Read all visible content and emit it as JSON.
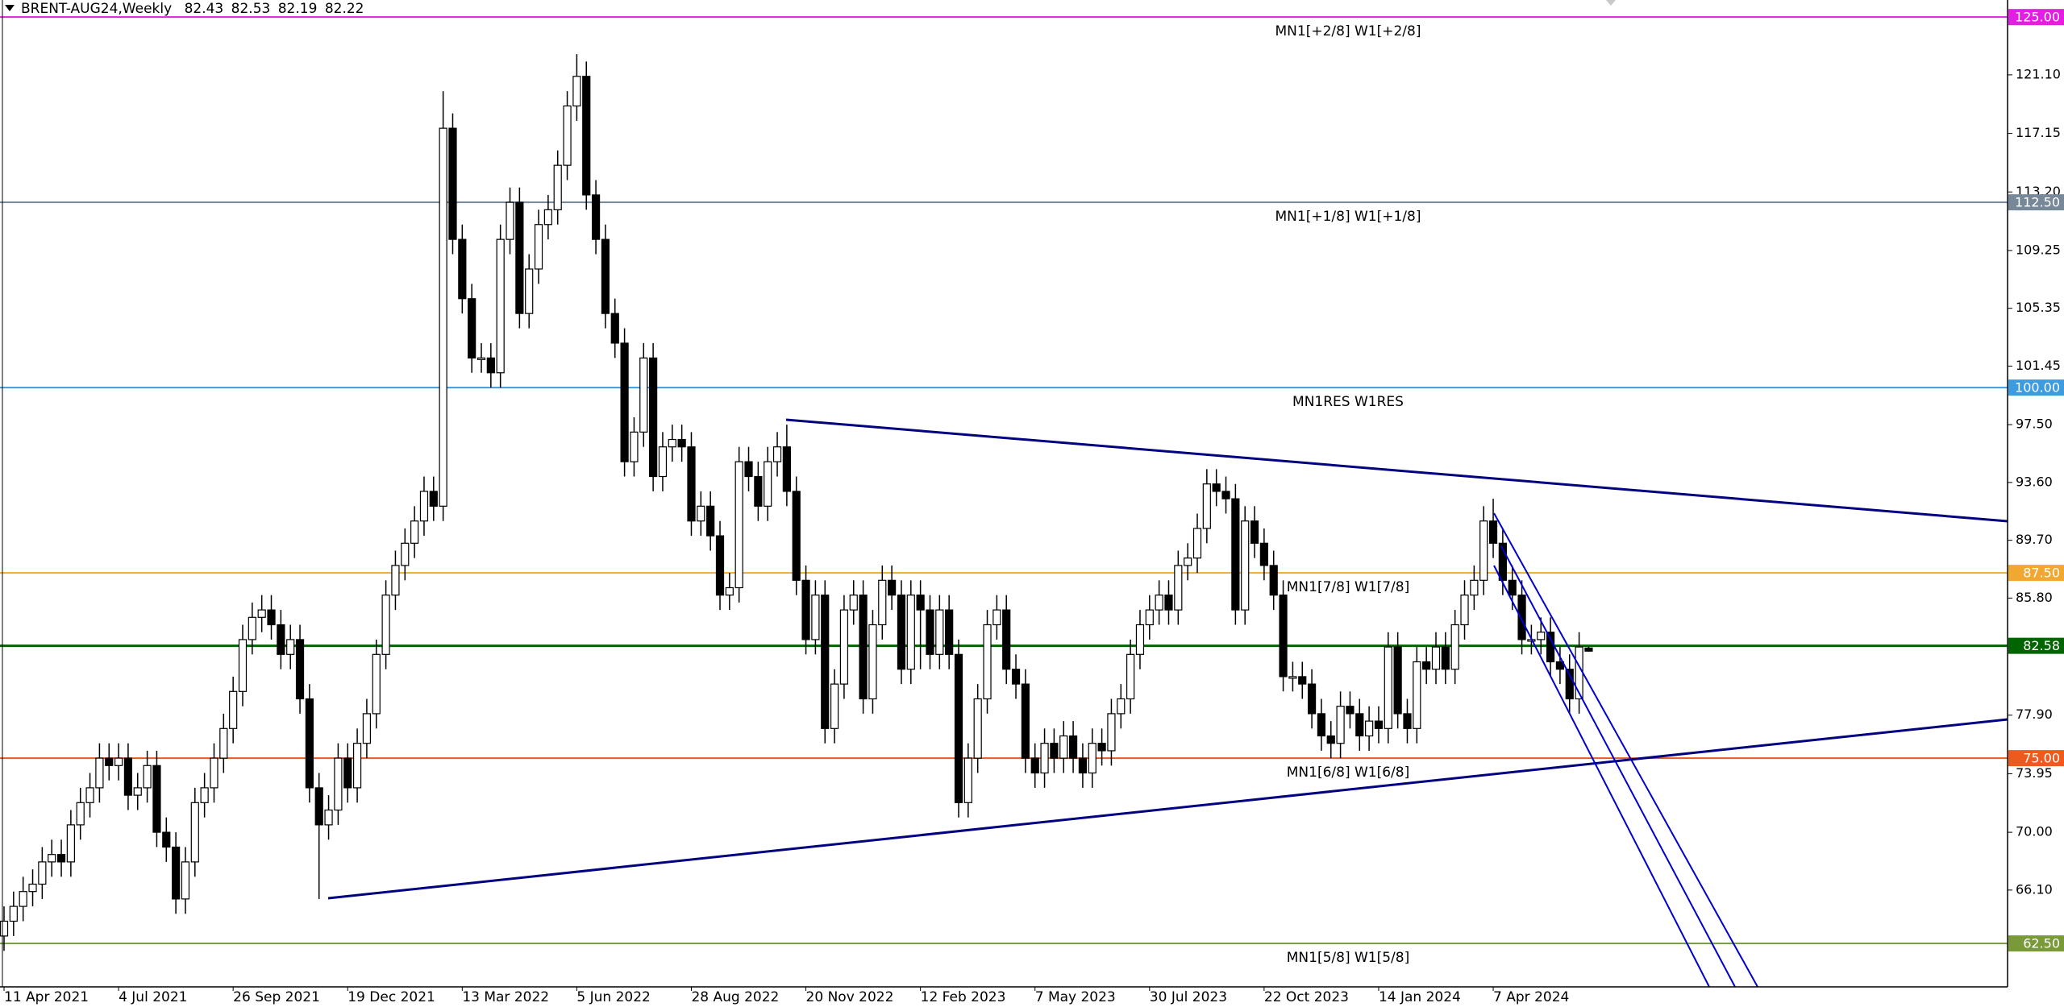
{
  "header": {
    "symbol": "BRENT-AUG24,Weekly",
    "ohlc": [
      82.43,
      82.53,
      82.19,
      82.22
    ]
  },
  "chart_data": {
    "type": "candlestick",
    "categories": [
      "11 Apr 2021",
      null,
      null,
      null,
      null,
      null,
      null,
      null,
      null,
      null,
      null,
      null,
      "4 Jul 2021",
      null,
      null,
      null,
      null,
      null,
      null,
      null,
      null,
      null,
      null,
      null,
      "26 Sep 2021",
      null,
      null,
      null,
      null,
      null,
      null,
      null,
      null,
      null,
      null,
      null,
      "19 Dec 2021",
      null,
      null,
      null,
      null,
      null,
      null,
      null,
      null,
      null,
      null,
      null,
      "13 Mar 2022",
      null,
      null,
      null,
      null,
      null,
      null,
      null,
      null,
      null,
      null,
      null,
      "5 Jun 2022",
      null,
      null,
      null,
      null,
      null,
      null,
      null,
      null,
      null,
      null,
      null,
      "28 Aug 2022",
      null,
      null,
      null,
      null,
      null,
      null,
      null,
      null,
      null,
      null,
      null,
      "20 Nov 2022",
      null,
      null,
      null,
      null,
      null,
      null,
      null,
      null,
      null,
      null,
      null,
      "12 Feb 2023",
      null,
      null,
      null,
      null,
      null,
      null,
      null,
      null,
      null,
      null,
      null,
      "7 May 2023",
      null,
      null,
      null,
      null,
      null,
      null,
      null,
      null,
      null,
      null,
      null,
      "30 Jul 2023",
      null,
      null,
      null,
      null,
      null,
      null,
      null,
      null,
      null,
      null,
      null,
      "22 Oct 2023",
      null,
      null,
      null,
      null,
      null,
      null,
      null,
      null,
      null,
      null,
      null,
      "14 Jan 2024",
      null,
      null,
      null,
      null,
      null,
      null,
      null,
      null,
      null,
      null,
      null,
      "7 Apr 2024",
      null,
      null,
      null,
      null,
      null,
      null,
      null,
      null,
      null,
      null
    ],
    "open": [
      63,
      64,
      65,
      66,
      66.5,
      68,
      68.5,
      68,
      70.5,
      72,
      73,
      75,
      74.5,
      75,
      72.5,
      73,
      74.5,
      70,
      69,
      65.5,
      68,
      72,
      73,
      75,
      77,
      79.5,
      83,
      84.5,
      85,
      84,
      82,
      83,
      79,
      73,
      70.5,
      71.5,
      75,
      73,
      76,
      78,
      82,
      86,
      88,
      89.5,
      91,
      93,
      92,
      117.5,
      110,
      106,
      102,
      102,
      101,
      110,
      112.5,
      105,
      108,
      111,
      112,
      115,
      119,
      121,
      113,
      110,
      105,
      103,
      95,
      97,
      102,
      94,
      96,
      96.5,
      96,
      91,
      92,
      90,
      86,
      86.5,
      95,
      94,
      92,
      95,
      96,
      93,
      87,
      83,
      86,
      77,
      80,
      85,
      86,
      79,
      84,
      87,
      86,
      81,
      86,
      85,
      82,
      85,
      82,
      72,
      75,
      79,
      84,
      85,
      81,
      80,
      75,
      74,
      76,
      75,
      76.5,
      75,
      74,
      76,
      75.5,
      78,
      79,
      82,
      84,
      85,
      86,
      85,
      88,
      88.5,
      90.5,
      93.5,
      93,
      92.5,
      85,
      91,
      89.5,
      88,
      86,
      80.5,
      80.5,
      80,
      78,
      76.5,
      76,
      78.5,
      78,
      76.5,
      77.5,
      77,
      82.5,
      78,
      77,
      81.5,
      81,
      82.5,
      81,
      84,
      86,
      87,
      91,
      89.5,
      87,
      86,
      83,
      83,
      83.5,
      81.5,
      81,
      79,
      82.43
    ],
    "high": [
      65,
      66,
      67,
      67.5,
      69,
      69.5,
      69.5,
      71.5,
      73,
      74,
      76,
      76,
      76,
      76,
      74,
      75.5,
      75.5,
      71,
      70,
      69,
      73,
      74,
      76,
      78,
      80.5,
      84,
      85.5,
      86,
      86,
      85,
      84,
      84,
      80,
      74,
      72.5,
      76,
      76,
      77,
      79,
      83,
      87,
      89,
      90.5,
      92,
      94,
      94,
      120,
      118.5,
      111,
      107,
      103,
      103,
      111,
      113.5,
      113.5,
      109,
      112,
      113,
      116,
      120,
      122.5,
      122,
      114,
      111,
      106,
      104,
      98,
      103,
      103,
      97,
      97.5,
      97.5,
      97,
      93,
      93,
      91,
      87.5,
      96,
      96,
      95,
      96,
      97,
      97.5,
      94,
      88,
      87,
      87,
      81,
      86,
      87,
      87,
      85,
      88,
      88,
      87,
      87,
      87,
      86,
      86,
      86,
      83,
      76,
      80,
      85,
      86,
      86,
      82,
      81,
      76,
      77,
      77,
      77.5,
      77.5,
      76,
      77,
      77,
      79,
      80,
      83,
      85,
      86,
      87,
      87,
      89,
      89.5,
      91.5,
      94.5,
      94.5,
      94,
      93.5,
      92,
      92,
      90.5,
      89,
      87,
      81.5,
      81.5,
      81,
      79,
      77.5,
      79.5,
      79.5,
      79,
      78.5,
      78.5,
      83.5,
      83.5,
      79,
      82.5,
      82.5,
      83.5,
      83.5,
      85,
      87,
      88,
      92,
      92.5,
      90.5,
      88,
      87,
      84,
      84.5,
      84.5,
      82.5,
      82,
      83.5,
      82.53
    ],
    "low": [
      62,
      63,
      64,
      65,
      65.5,
      67,
      67,
      67,
      69.5,
      71,
      72,
      73.5,
      73.5,
      71.5,
      71.5,
      72,
      69,
      68,
      64.5,
      64.5,
      67,
      71,
      72,
      74,
      76,
      78.5,
      82,
      83.5,
      83,
      81,
      81,
      78,
      72,
      65.5,
      69.5,
      70.5,
      72,
      72,
      75,
      77,
      81,
      85,
      87,
      88.5,
      90,
      91,
      91,
      109,
      105,
      101,
      101,
      100,
      100,
      109,
      104,
      104,
      107,
      110,
      111,
      114,
      118,
      112,
      109,
      104,
      102,
      94,
      94,
      96,
      93,
      93,
      95,
      95,
      90,
      90,
      89,
      85,
      85,
      85.5,
      93,
      91,
      91,
      94,
      92,
      86,
      82,
      82,
      76,
      76,
      79,
      84,
      78,
      78,
      83,
      85,
      80,
      80,
      81,
      81,
      81,
      81,
      71,
      71,
      74,
      78,
      83,
      80,
      79,
      74,
      73,
      73,
      74,
      74,
      74,
      73,
      73,
      74.5,
      74.5,
      77,
      78,
      81,
      83,
      84,
      84,
      84,
      87,
      87.5,
      89.5,
      92,
      91.5,
      84,
      84,
      88.5,
      87,
      85,
      79.5,
      79.5,
      79,
      77,
      75.5,
      75,
      75,
      77,
      75.5,
      75.5,
      76,
      76,
      77,
      76,
      76,
      80,
      80,
      80,
      80,
      83,
      85,
      86,
      88.5,
      86,
      85,
      82,
      82,
      82,
      80.5,
      80,
      78,
      78,
      82.19
    ],
    "close": [
      64,
      65,
      66,
      66.5,
      68,
      68.5,
      68,
      70.5,
      72,
      73,
      75,
      74.5,
      75,
      72.5,
      73,
      74.5,
      70,
      69,
      65.5,
      68,
      72,
      73,
      75,
      77,
      79.5,
      83,
      84.5,
      85,
      84,
      82,
      83,
      79,
      73,
      70.5,
      71.5,
      75,
      73,
      76,
      78,
      82,
      86,
      88,
      89.5,
      91,
      93,
      92,
      117.5,
      110,
      106,
      102,
      102,
      101,
      110,
      112.5,
      105,
      108,
      111,
      112,
      115,
      119,
      121,
      113,
      110,
      105,
      103,
      95,
      97,
      102,
      94,
      96,
      96.5,
      96,
      91,
      92,
      90,
      86,
      86.5,
      95,
      94,
      92,
      95,
      96,
      93,
      87,
      83,
      86,
      77,
      80,
      85,
      86,
      79,
      84,
      87,
      86,
      81,
      86,
      85,
      82,
      85,
      82,
      72,
      75,
      79,
      84,
      85,
      81,
      80,
      75,
      74,
      76,
      75,
      76.5,
      75,
      74,
      76,
      75.5,
      78,
      79,
      82,
      84,
      85,
      86,
      85,
      88,
      88.5,
      90.5,
      93.5,
      93,
      92.5,
      85,
      91,
      89.5,
      88,
      86,
      80.5,
      80.5,
      80,
      78,
      76.5,
      76,
      78.5,
      78,
      76.5,
      77.5,
      77,
      82.5,
      78,
      77,
      81.5,
      81,
      82.5,
      81,
      84,
      86,
      87,
      91,
      89.5,
      87,
      86,
      83,
      83,
      83.5,
      81.5,
      81,
      79,
      82.5,
      82.22
    ],
    "bull_color": "#ffffff",
    "bear_color": "#000000",
    "ylim": [
      59.57,
      126.15
    ],
    "yticks": [
      {
        "value": 121.1,
        "label": "121.10"
      },
      117.15,
      {
        "value": 113.2,
        "label": "113.20"
      },
      109.25,
      105.35,
      101.45,
      {
        "value": 97.5,
        "label": "97.50"
      },
      {
        "value": 93.6,
        "label": "93.60"
      },
      {
        "value": 89.7,
        "label": "89.70"
      },
      {
        "value": 85.8,
        "label": "85.80"
      },
      {
        "value": 77.9,
        "label": "77.90"
      },
      73.95,
      {
        "value": 70,
        "label": "70.00"
      },
      {
        "value": 66.1,
        "label": "66.10"
      }
    ],
    "levels": [
      {
        "name": "MN1[+2/8] W1[+2/8]",
        "value": 125,
        "value_label": "125.00",
        "color": "#e31ee3"
      },
      {
        "name": "MN1[+1/8] W1[+1/8]",
        "value": 112.5,
        "value_label": "112.50",
        "color": "#778899"
      },
      {
        "name": "MN1RES W1RES",
        "value": 100,
        "value_label": "100.00",
        "color": "#3d9be0"
      },
      {
        "name": "MN1[7/8] W1[7/8]",
        "value": 87.5,
        "value_label": "87.50",
        "color": "#f0a830"
      },
      {
        "value": 82.58,
        "color": "#006400"
      },
      {
        "name": "MN1[6/8] W1[6/8]",
        "value": 75,
        "value_label": "75.00",
        "color": "#ec5a1e"
      },
      {
        "name": "MN1[5/8] W1[5/8]",
        "value": 62.5,
        "value_label": "62.50",
        "color": "#7a9a3a"
      }
    ]
  }
}
